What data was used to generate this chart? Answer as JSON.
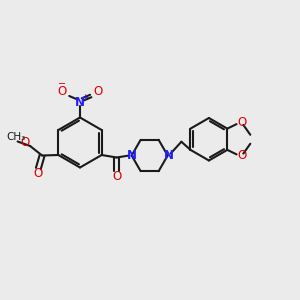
{
  "bg_color": "#ebebeb",
  "bond_color": "#1a1a1a",
  "n_color": "#2020ff",
  "o_color": "#dd0000",
  "lw": 1.5,
  "figsize": [
    3.0,
    3.0
  ],
  "dpi": 100,
  "xlim": [
    0,
    12
  ],
  "ylim": [
    0,
    10
  ]
}
